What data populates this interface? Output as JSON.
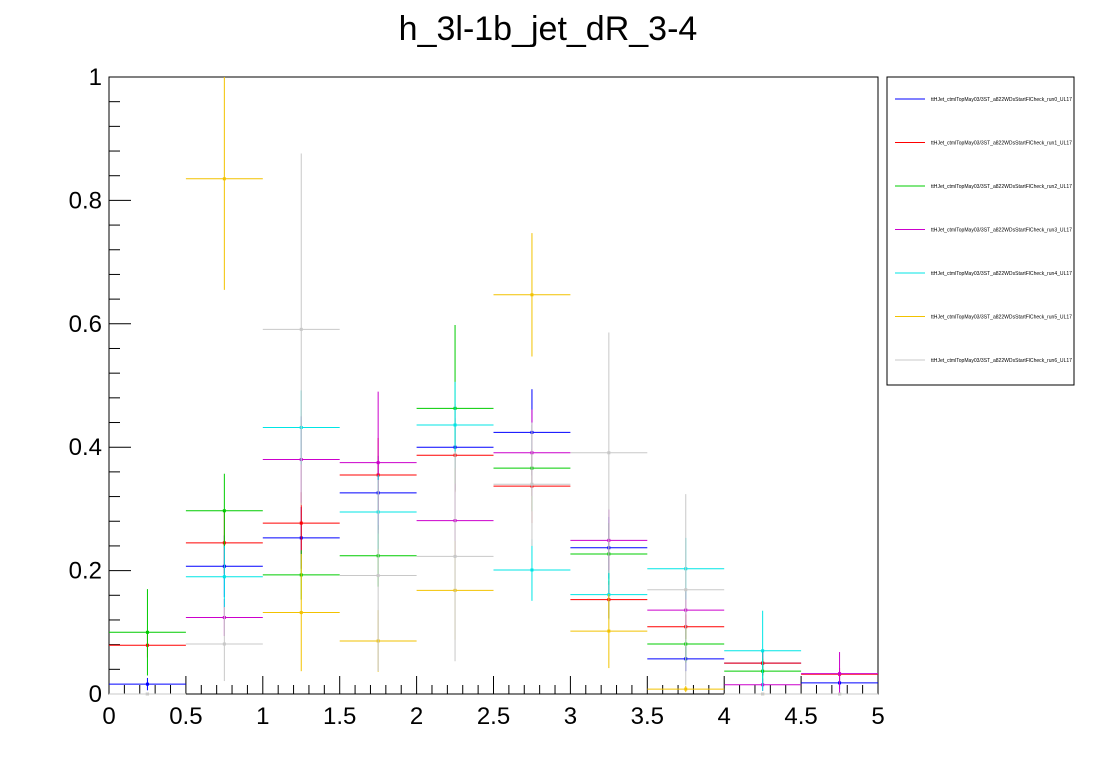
{
  "chart_data": {
    "type": "histogram",
    "title": "h_3l-1b_jet_dR_3-4",
    "xlabel": "",
    "ylabel": "",
    "xlim": [
      0,
      5
    ],
    "ylim": [
      0,
      1.0
    ],
    "x_ticks": [
      "0",
      "0.5",
      "1",
      "1.5",
      "2",
      "2.5",
      "3",
      "3.5",
      "4",
      "4.5",
      "5"
    ],
    "y_ticks": [
      "0",
      "0.2",
      "0.4",
      "0.6",
      "0.8",
      "1"
    ],
    "bin_edges": [
      0,
      0.5,
      1,
      1.5,
      2,
      2.5,
      3,
      3.5,
      4,
      4.5,
      5
    ],
    "legend_position": "top-right, outside plot",
    "series": [
      {
        "name": "ttHJet_ctmlTopMay03/3ST_a822WDsStartFlCheck_run0_UL17",
        "color": "#0000ff",
        "values": [
          0.016,
          0.207,
          0.253,
          0.326,
          0.4,
          0.424,
          0.237,
          0.057,
          0.05,
          0.018
        ],
        "errors": [
          0.01,
          0.05,
          0.05,
          0.06,
          0.07,
          0.07,
          0.05,
          0.02,
          0.02,
          0.01
        ]
      },
      {
        "name": "ttHJet_ctmlTopMay03/3ST_a822WDsStartFlCheck_run1_UL17",
        "color": "#ff0000",
        "values": [
          0.079,
          0.245,
          0.277,
          0.355,
          0.387,
          0.337,
          0.153,
          0.109,
          0.05,
          0.032
        ],
        "errors": [
          0.02,
          0.05,
          0.05,
          0.06,
          0.06,
          0.06,
          0.03,
          0.02,
          0.02,
          0.01
        ]
      },
      {
        "name": "ttHJet_ctmlTopMay03/3ST_a822WDsStartFlCheck_run2_UL17",
        "color": "#00cc00",
        "values": [
          0.1,
          0.297,
          0.193,
          0.224,
          0.463,
          0.366,
          0.227,
          0.081,
          0.037,
          0.0
        ],
        "errors": [
          0.07,
          0.06,
          0.04,
          0.05,
          0.135,
          0.07,
          0.05,
          0.03,
          0.02,
          0.0
        ]
      },
      {
        "name": "ttHJet_ctmlTopMay03/3ST_a822WDsStartFlCheck_run3_UL17",
        "color": "#cc00cc",
        "values": [
          0.0,
          0.124,
          0.38,
          0.375,
          0.281,
          0.391,
          0.249,
          0.136,
          0.015,
          0.033
        ],
        "errors": [
          0.0,
          0.03,
          0.07,
          0.115,
          0.06,
          0.07,
          0.05,
          0.03,
          0.01,
          0.035
        ]
      },
      {
        "name": "ttHJet_ctmlTopMay03/3ST_a822WDsStartFlCheck_run4_UL17",
        "color": "#00e5e5",
        "values": [
          0.0,
          0.19,
          0.432,
          0.295,
          0.436,
          0.201,
          0.161,
          0.203,
          0.07,
          0.0
        ],
        "errors": [
          0.0,
          0.05,
          0.06,
          0.06,
          0.07,
          0.05,
          0.04,
          0.05,
          0.065,
          0.0
        ]
      },
      {
        "name": "ttHJet_ctmlTopMay03/3ST_a822WDsStartFlCheck_run5_UL17",
        "color": "#f2c200",
        "values": [
          0.0,
          0.835,
          0.132,
          0.086,
          0.168,
          0.647,
          0.102,
          0.008,
          0.0,
          0.0
        ],
        "errors": [
          0.0,
          0.18,
          0.095,
          0.05,
          0.08,
          0.1,
          0.06,
          0.005,
          0.0,
          0.0
        ]
      },
      {
        "name": "ttHJet_ctmlTopMay03/3ST_a822WDsStartFlCheck_run6_UL17",
        "color": "#c8c8c8",
        "values": [
          0.0,
          0.081,
          0.591,
          0.192,
          0.223,
          0.34,
          0.391,
          0.169,
          0.0,
          0.0
        ],
        "errors": [
          0.0,
          0.06,
          0.285,
          0.155,
          0.17,
          0.1,
          0.195,
          0.155,
          0.0,
          0.0
        ]
      }
    ]
  }
}
